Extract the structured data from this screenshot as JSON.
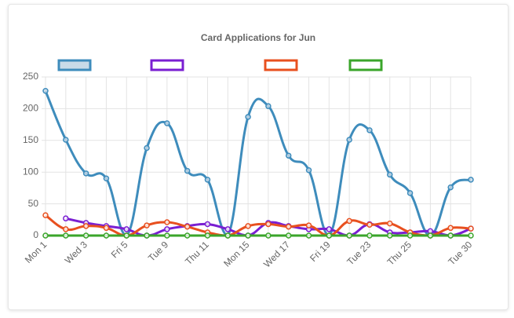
{
  "chart_data": {
    "type": "line",
    "title": "Card Applications for Jun",
    "categories": [
      "Mon 1",
      null,
      "Wed 3",
      null,
      "Fri 5",
      null,
      "Tue 9",
      null,
      "Thu 11",
      null,
      "Mon 15",
      null,
      "Wed 17",
      null,
      "Fri 19",
      null,
      "Tue 23",
      null,
      "Thu 25",
      null,
      null,
      "Tue 30"
    ],
    "series": [
      {
        "color": "#3e8cbc",
        "fill": "#c9dbe8",
        "values": [
          228,
          151,
          98,
          90,
          0,
          138,
          177,
          102,
          88,
          0,
          187,
          204,
          126,
          103,
          0,
          151,
          166,
          96,
          67,
          0,
          76,
          88
        ]
      },
      {
        "color": "#7a1fd2",
        "fill": "#ffffff",
        "values": [
          null,
          27,
          20,
          15,
          10,
          0,
          10,
          15,
          18,
          10,
          0,
          20,
          15,
          10,
          10,
          0,
          18,
          5,
          5,
          7,
          0,
          11
        ]
      },
      {
        "color": "#e8501f",
        "fill": "#ffffff",
        "values": [
          32,
          10,
          15,
          12,
          0,
          16,
          21,
          14,
          5,
          0,
          15,
          18,
          14,
          16,
          0,
          23,
          17,
          19,
          5,
          0,
          12,
          11
        ]
      },
      {
        "color": "#3aa52a",
        "fill": "#ffffff",
        "values": [
          0,
          0,
          0,
          0,
          0,
          0,
          0,
          0,
          0,
          0,
          0,
          0,
          0,
          0,
          0,
          0,
          0,
          0,
          0,
          0,
          0,
          0
        ]
      }
    ],
    "ylim": [
      0,
      250
    ],
    "yticks": [
      0,
      50,
      100,
      150,
      200,
      250
    ],
    "grid": true
  }
}
